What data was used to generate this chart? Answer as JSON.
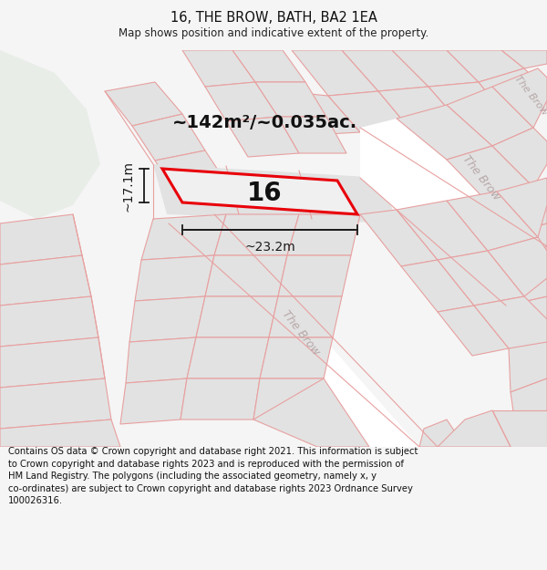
{
  "title": "16, THE BROW, BATH, BA2 1EA",
  "subtitle": "Map shows position and indicative extent of the property.",
  "footer": "Contains OS data © Crown copyright and database right 2021. This information is subject\nto Crown copyright and database rights 2023 and is reproduced with the permission of\nHM Land Registry. The polygons (including the associated geometry, namely x, y\nco-ordinates) are subject to Crown copyright and database rights 2023 Ordnance Survey\n100026316.",
  "area_label": "~142m²/~0.035ac.",
  "width_label": "~23.2m",
  "height_label": "~17.1m",
  "plot_number": "16",
  "bg_color": "#f5f5f5",
  "map_bg": "#ffffff",
  "green_color": "#e8ede8",
  "plot_fill": "#e2e2e2",
  "road_fill": "#e8e8e8",
  "plot_outline_red": "#e8000a",
  "property_line_color": "#e8a0a0",
  "road_label_color": "#b8a8a8",
  "dim_color": "#1a1a1a",
  "title_fontsize": 10.5,
  "subtitle_fontsize": 8.5,
  "footer_fontsize": 7.2,
  "area_fontsize": 14,
  "number_fontsize": 20,
  "dim_fontsize": 10,
  "road_label_fontsize": 9
}
